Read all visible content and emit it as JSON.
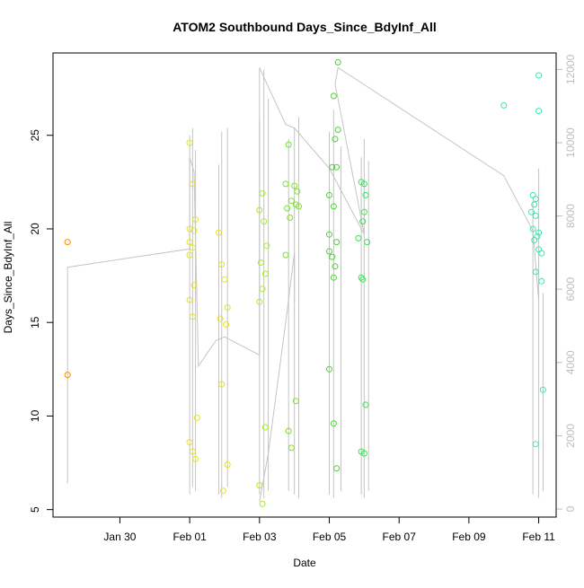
{
  "chart_data": {
    "type": "scatter",
    "title": "ATOM2 Southbound Days_Since_BdyInf_All",
    "xlabel": "Date",
    "ylabel": "Days_Since_BdyInf_All",
    "x_axis_type": "date",
    "xlim": [
      "2022-01-28 02:00",
      "2022-02-11 12:00"
    ],
    "ylim": [
      4.6,
      29.4
    ],
    "x_ticks": [
      {
        "label": "Jan 30",
        "date": "2022-01-30"
      },
      {
        "label": "Feb 01",
        "date": "2022-02-01"
      },
      {
        "label": "Feb 03",
        "date": "2022-02-03"
      },
      {
        "label": "Feb 05",
        "date": "2022-02-05"
      },
      {
        "label": "Feb 07",
        "date": "2022-02-07"
      },
      {
        "label": "Feb 09",
        "date": "2022-02-09"
      },
      {
        "label": "Feb 11",
        "date": "2022-02-11"
      }
    ],
    "y_ticks": [
      5,
      10,
      15,
      20,
      25
    ],
    "secondary_y": {
      "ylim": [
        -220,
        12450
      ],
      "ticks": [
        0,
        2000,
        4000,
        6000,
        8000,
        10000,
        12000
      ],
      "color": "#bdbdbd",
      "series": [
        {
          "name": "",
          "color": "#c4c4c4",
          "points": [
            [
              "2022-01-28 12:00",
              700
            ],
            [
              "2022-01-28 12:00",
              6600
            ],
            [
              "2022-02-01 00:00",
              7100
            ],
            [
              "2022-02-01 00:00",
              9600
            ],
            [
              "2022-02-01 03:00",
              9200
            ],
            [
              "2022-02-01 06:00",
              3900
            ],
            [
              "2022-02-01 18:00",
              4600
            ],
            [
              "2022-02-02 00:00",
              4700
            ],
            [
              "2022-02-03 00:00",
              4200
            ],
            [
              "2022-02-03 00:00",
              12050
            ],
            [
              "2022-02-03 04:00",
              11700
            ],
            [
              "2022-02-03 18:00",
              10500
            ],
            [
              "2022-02-04 00:00",
              10400
            ],
            [
              "2022-02-05 00:00",
              9300
            ],
            [
              "2022-02-06 00:00",
              7500
            ],
            [
              "2022-02-05 04:00",
              11600
            ],
            [
              "2022-02-05 06:00",
              12050
            ],
            [
              "2022-02-10 00:00",
              9100
            ],
            [
              "2022-02-10 20:00",
              7600
            ],
            [
              "2022-02-11 00:00",
              5700
            ]
          ]
        },
        {
          "name": "",
          "color": "#c4c4c4",
          "points": [
            [
              "2022-02-03 00:00",
              200
            ],
            [
              "2022-02-03 06:00",
              1500
            ],
            [
              "2022-02-03 18:00",
              5100
            ],
            [
              "2022-02-04 00:00",
              7000
            ],
            [
              "2022-02-04 00:00",
              5600
            ]
          ]
        }
      ],
      "spikes": [
        {
          "t": "2022-02-01 00:00",
          "lo": 400,
          "hi": 10200
        },
        {
          "t": "2022-02-01 02:00",
          "lo": 600,
          "hi": 10400
        },
        {
          "t": "2022-02-01 04:00",
          "lo": 500,
          "hi": 9800
        },
        {
          "t": "2022-02-01 20:00",
          "lo": 400,
          "hi": 9400
        },
        {
          "t": "2022-02-01 22:00",
          "lo": 300,
          "hi": 10300
        },
        {
          "t": "2022-02-02 02:00",
          "lo": 600,
          "hi": 10400
        },
        {
          "t": "2022-02-03 00:00",
          "lo": 400,
          "hi": 10600
        },
        {
          "t": "2022-02-03 03:00",
          "lo": 300,
          "hi": 12000
        },
        {
          "t": "2022-02-03 06:00",
          "lo": 500,
          "hi": 11200
        },
        {
          "t": "2022-02-03 20:00",
          "lo": 500,
          "hi": 10100
        },
        {
          "t": "2022-02-04 00:00",
          "lo": 400,
          "hi": 10400
        },
        {
          "t": "2022-02-04 03:00",
          "lo": 300,
          "hi": 10700
        },
        {
          "t": "2022-02-05 00:00",
          "lo": 400,
          "hi": 10300
        },
        {
          "t": "2022-02-05 03:00",
          "lo": 300,
          "hi": 10900
        },
        {
          "t": "2022-02-05 08:00",
          "lo": 500,
          "hi": 9900
        },
        {
          "t": "2022-02-05 22:00",
          "lo": 400,
          "hi": 9600
        },
        {
          "t": "2022-02-06 00:00",
          "lo": 300,
          "hi": 10100
        },
        {
          "t": "2022-02-06 03:00",
          "lo": 500,
          "hi": 9500
        },
        {
          "t": "2022-02-10 20:00",
          "lo": 400,
          "hi": 8400
        },
        {
          "t": "2022-02-11 00:00",
          "lo": 300,
          "hi": 9300
        },
        {
          "t": "2022-02-11 03:00",
          "lo": 500,
          "hi": 5900
        }
      ]
    },
    "series": [
      {
        "name": "",
        "color": "#ff8c00",
        "points": [
          [
            "2022-01-28 12:00",
            19.3
          ],
          [
            "2022-01-28 12:00",
            12.2
          ]
        ]
      },
      {
        "name": "",
        "color": "#e2e22a",
        "points": [
          [
            "2022-02-01 00:00",
            24.6
          ],
          [
            "2022-02-01 02:00",
            22.4
          ],
          [
            "2022-02-01 04:00",
            20.5
          ],
          [
            "2022-02-01 00:00",
            20.0
          ],
          [
            "2022-02-01 03:00",
            19.9
          ],
          [
            "2022-02-01 00:00",
            19.3
          ],
          [
            "2022-02-01 02:00",
            19.0
          ],
          [
            "2022-02-01 00:00",
            18.6
          ],
          [
            "2022-02-01 03:00",
            17.0
          ],
          [
            "2022-02-01 00:00",
            16.2
          ],
          [
            "2022-02-01 02:00",
            15.3
          ],
          [
            "2022-02-01 05:00",
            9.9
          ],
          [
            "2022-02-01 00:00",
            8.6
          ],
          [
            "2022-02-01 02:00",
            8.1
          ],
          [
            "2022-02-01 04:00",
            7.7
          ],
          [
            "2022-02-01 20:00",
            19.8
          ],
          [
            "2022-02-01 22:00",
            18.1
          ],
          [
            "2022-02-02 00:00",
            17.3
          ],
          [
            "2022-02-02 02:00",
            15.8
          ],
          [
            "2022-02-01 21:00",
            15.2
          ],
          [
            "2022-02-02 01:00",
            14.9
          ],
          [
            "2022-02-01 22:00",
            11.7
          ],
          [
            "2022-02-02 02:00",
            7.4
          ],
          [
            "2022-02-01 23:00",
            6.0
          ]
        ]
      },
      {
        "name": "",
        "color": "#a8ee28",
        "points": [
          [
            "2022-02-03 02:00",
            21.9
          ],
          [
            "2022-02-03 00:00",
            21.0
          ],
          [
            "2022-02-03 03:00",
            20.4
          ],
          [
            "2022-02-03 05:00",
            19.1
          ],
          [
            "2022-02-03 01:00",
            18.2
          ],
          [
            "2022-02-03 04:00",
            17.6
          ],
          [
            "2022-02-03 02:00",
            16.8
          ],
          [
            "2022-02-03 00:00",
            16.1
          ],
          [
            "2022-02-03 04:00",
            9.4
          ],
          [
            "2022-02-03 00:00",
            6.3
          ],
          [
            "2022-02-03 02:00",
            5.3
          ]
        ]
      },
      {
        "name": "",
        "color": "#7de02b",
        "points": [
          [
            "2022-02-03 20:00",
            24.5
          ],
          [
            "2022-02-03 18:00",
            22.4
          ],
          [
            "2022-02-04 00:00",
            22.3
          ],
          [
            "2022-02-04 02:00",
            22.0
          ],
          [
            "2022-02-03 22:00",
            21.5
          ],
          [
            "2022-02-04 01:00",
            21.3
          ],
          [
            "2022-02-04 03:00",
            21.2
          ],
          [
            "2022-02-03 19:00",
            21.1
          ],
          [
            "2022-02-03 21:00",
            20.6
          ],
          [
            "2022-02-03 18:00",
            18.6
          ],
          [
            "2022-02-04 01:00",
            10.8
          ],
          [
            "2022-02-03 20:00",
            9.2
          ],
          [
            "2022-02-03 22:00",
            8.3
          ]
        ]
      },
      {
        "name": "",
        "color": "#4cd235",
        "points": [
          [
            "2022-02-05 06:00",
            28.9
          ],
          [
            "2022-02-05 03:00",
            27.1
          ],
          [
            "2022-02-05 06:00",
            25.3
          ],
          [
            "2022-02-05 04:00",
            24.8
          ],
          [
            "2022-02-05 02:00",
            23.3
          ],
          [
            "2022-02-05 05:00",
            23.3
          ],
          [
            "2022-02-05 00:00",
            21.8
          ],
          [
            "2022-02-05 03:00",
            21.2
          ],
          [
            "2022-02-05 00:00",
            19.7
          ],
          [
            "2022-02-05 05:00",
            19.3
          ],
          [
            "2022-02-05 00:00",
            18.8
          ],
          [
            "2022-02-05 02:00",
            18.5
          ],
          [
            "2022-02-05 04:00",
            18.0
          ],
          [
            "2022-02-05 03:00",
            17.4
          ],
          [
            "2022-02-05 00:00",
            12.5
          ],
          [
            "2022-02-05 03:00",
            9.6
          ],
          [
            "2022-02-05 05:00",
            7.2
          ]
        ]
      },
      {
        "name": "",
        "color": "#3ee05a",
        "points": [
          [
            "2022-02-05 22:00",
            22.5
          ],
          [
            "2022-02-06 00:00",
            22.4
          ],
          [
            "2022-02-06 01:00",
            21.8
          ],
          [
            "2022-02-06 00:00",
            20.9
          ],
          [
            "2022-02-05 23:00",
            20.4
          ],
          [
            "2022-02-05 20:00",
            19.5
          ],
          [
            "2022-02-06 02:00",
            19.3
          ],
          [
            "2022-02-05 22:00",
            17.4
          ],
          [
            "2022-02-05 23:00",
            17.3
          ],
          [
            "2022-02-06 01:00",
            10.6
          ],
          [
            "2022-02-05 22:00",
            8.1
          ],
          [
            "2022-02-06 00:00",
            8.0
          ]
        ]
      },
      {
        "name": "",
        "color": "#3ce8a8",
        "points": [
          [
            "2022-02-10 00:00",
            26.6
          ],
          [
            "2022-02-11 00:00",
            28.2
          ],
          [
            "2022-02-11 00:00",
            26.3
          ],
          [
            "2022-02-10 20:00",
            21.8
          ],
          [
            "2022-02-10 22:00",
            21.6
          ],
          [
            "2022-02-10 21:00",
            21.3
          ],
          [
            "2022-02-10 19:00",
            20.9
          ],
          [
            "2022-02-10 22:00",
            20.7
          ],
          [
            "2022-02-10 20:00",
            20.0
          ],
          [
            "2022-02-11 00:00",
            19.8
          ],
          [
            "2022-02-10 23:00",
            19.6
          ],
          [
            "2022-02-10 21:00",
            19.4
          ],
          [
            "2022-02-11 00:00",
            18.9
          ],
          [
            "2022-02-11 02:00",
            18.7
          ],
          [
            "2022-02-10 22:00",
            17.7
          ],
          [
            "2022-02-11 02:00",
            17.2
          ],
          [
            "2022-02-11 03:00",
            11.4
          ],
          [
            "2022-02-10 22:00",
            8.5
          ]
        ]
      }
    ],
    "grid": false,
    "legend": "none"
  }
}
